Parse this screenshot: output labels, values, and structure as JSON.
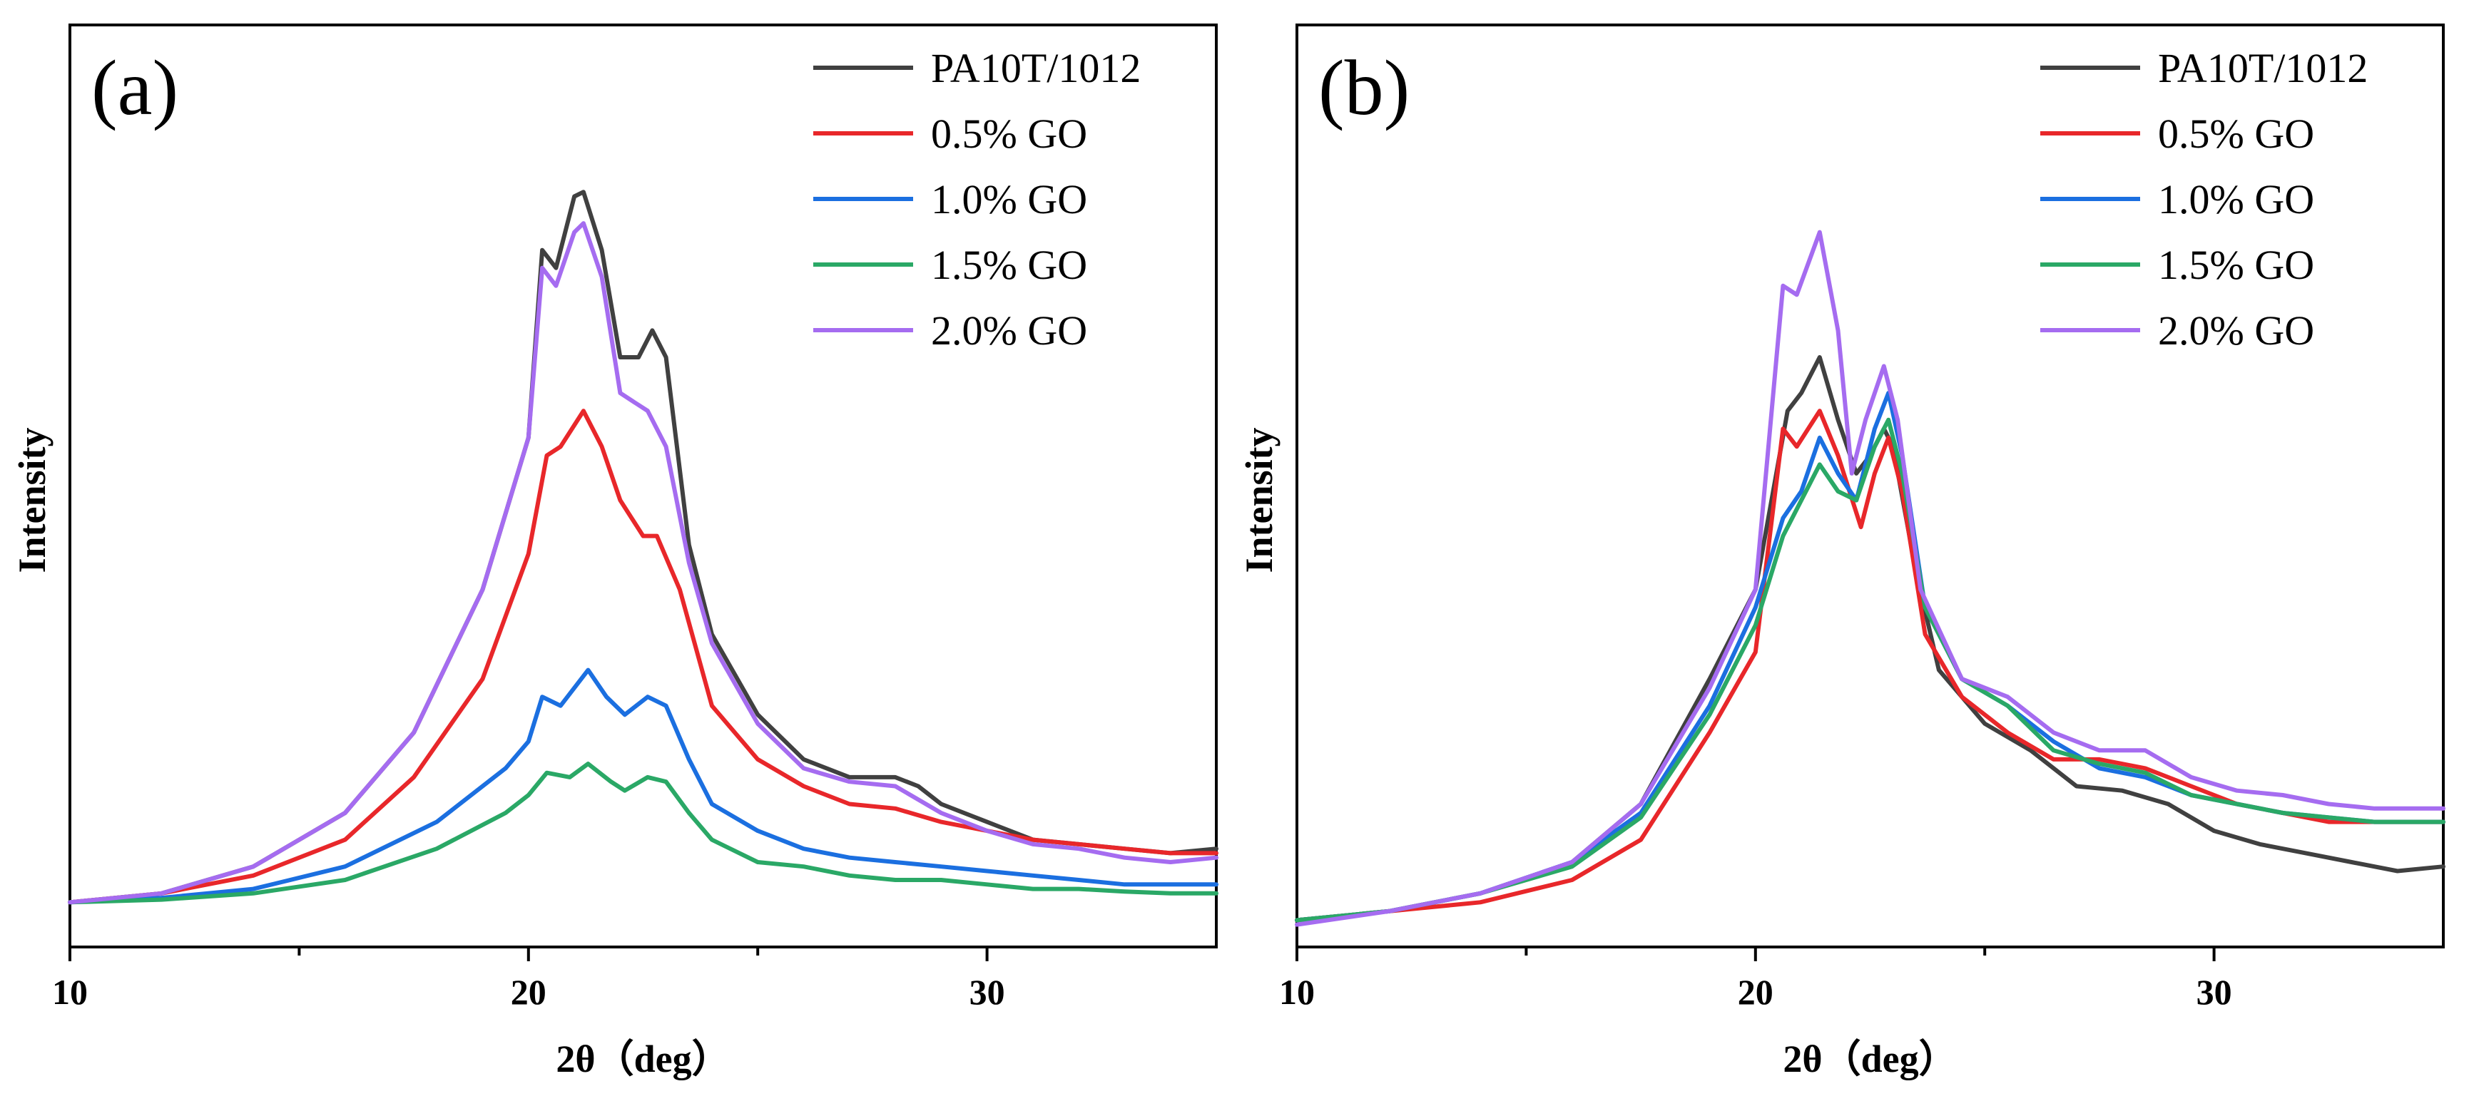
{
  "colors": {
    "PA10T/1012": "#404040",
    "0.5% GO": "#e8272a",
    "1.0% GO": "#1b6fe0",
    "1.5% GO": "#2aa866",
    "2.0% GO": "#a56cf0"
  },
  "chart_data": [
    {
      "type": "line",
      "panel_label": "(a)",
      "xlabel": "2θ（deg）",
      "ylabel": "Intensity",
      "xlim": [
        10,
        35
      ],
      "ylim": [
        0,
        100
      ],
      "xticks": [
        10,
        20,
        30
      ],
      "xtick_labels": [
        "10",
        "20",
        "30"
      ],
      "legend_position": "top-right",
      "series": [
        {
          "name": "PA10T/1012",
          "points": [
            [
              10,
              5
            ],
            [
              12,
              6
            ],
            [
              14,
              9
            ],
            [
              16,
              15
            ],
            [
              17.5,
              24
            ],
            [
              19,
              40
            ],
            [
              20,
              57
            ],
            [
              20.3,
              78
            ],
            [
              20.6,
              76
            ],
            [
              21,
              84
            ],
            [
              21.2,
              84.5
            ],
            [
              21.6,
              78
            ],
            [
              22,
              66
            ],
            [
              22.4,
              66
            ],
            [
              22.7,
              69
            ],
            [
              23,
              66
            ],
            [
              23.5,
              45
            ],
            [
              24,
              35
            ],
            [
              25,
              26
            ],
            [
              26,
              21
            ],
            [
              27,
              19
            ],
            [
              28,
              19
            ],
            [
              28.5,
              18
            ],
            [
              29,
              16
            ],
            [
              30,
              14
            ],
            [
              31,
              12
            ],
            [
              32,
              11.5
            ],
            [
              33,
              11
            ],
            [
              34,
              10.5
            ],
            [
              35,
              11
            ]
          ]
        },
        {
          "name": "0.5% GO",
          "points": [
            [
              10,
              5
            ],
            [
              12,
              6
            ],
            [
              14,
              8
            ],
            [
              16,
              12
            ],
            [
              17.5,
              19
            ],
            [
              19,
              30
            ],
            [
              20,
              44
            ],
            [
              20.4,
              55
            ],
            [
              20.7,
              56
            ],
            [
              21.2,
              60
            ],
            [
              21.6,
              56
            ],
            [
              22,
              50
            ],
            [
              22.5,
              46
            ],
            [
              22.8,
              46
            ],
            [
              23.3,
              40
            ],
            [
              24,
              27
            ],
            [
              25,
              21
            ],
            [
              26,
              18
            ],
            [
              27,
              16
            ],
            [
              28,
              15.5
            ],
            [
              29,
              14
            ],
            [
              30,
              13
            ],
            [
              31,
              12
            ],
            [
              32,
              11.5
            ],
            [
              33,
              11
            ],
            [
              34,
              10.5
            ],
            [
              35,
              10.5
            ]
          ]
        },
        {
          "name": "1.0% GO",
          "points": [
            [
              10,
              5
            ],
            [
              12,
              5.5
            ],
            [
              14,
              6.5
            ],
            [
              16,
              9
            ],
            [
              18,
              14
            ],
            [
              19.5,
              20
            ],
            [
              20,
              23
            ],
            [
              20.3,
              28
            ],
            [
              20.7,
              27
            ],
            [
              21.3,
              31
            ],
            [
              21.7,
              28
            ],
            [
              22.1,
              26
            ],
            [
              22.6,
              28
            ],
            [
              23,
              27
            ],
            [
              23.5,
              21
            ],
            [
              24,
              16
            ],
            [
              25,
              13
            ],
            [
              26,
              11
            ],
            [
              27,
              10
            ],
            [
              28,
              9.5
            ],
            [
              29,
              9
            ],
            [
              30,
              8.5
            ],
            [
              31,
              8
            ],
            [
              32,
              7.5
            ],
            [
              33,
              7
            ],
            [
              34,
              7
            ],
            [
              35,
              7
            ]
          ]
        },
        {
          "name": "1.5% GO",
          "points": [
            [
              10,
              5
            ],
            [
              12,
              5.3
            ],
            [
              14,
              6
            ],
            [
              16,
              7.5
            ],
            [
              18,
              11
            ],
            [
              19.5,
              15
            ],
            [
              20,
              17
            ],
            [
              20.4,
              19.5
            ],
            [
              20.9,
              19
            ],
            [
              21.3,
              20.5
            ],
            [
              21.8,
              18.5
            ],
            [
              22.1,
              17.5
            ],
            [
              22.6,
              19
            ],
            [
              23,
              18.5
            ],
            [
              23.5,
              15
            ],
            [
              24,
              12
            ],
            [
              25,
              9.5
            ],
            [
              26,
              9
            ],
            [
              27,
              8
            ],
            [
              28,
              7.5
            ],
            [
              29,
              7.5
            ],
            [
              30,
              7
            ],
            [
              31,
              6.5
            ],
            [
              32,
              6.5
            ],
            [
              33,
              6.2
            ],
            [
              34,
              6
            ],
            [
              35,
              6
            ]
          ]
        },
        {
          "name": "2.0% GO",
          "points": [
            [
              10,
              5
            ],
            [
              12,
              6
            ],
            [
              14,
              9
            ],
            [
              16,
              15
            ],
            [
              17.5,
              24
            ],
            [
              19,
              40
            ],
            [
              20,
              57
            ],
            [
              20.3,
              76
            ],
            [
              20.6,
              74
            ],
            [
              21,
              80
            ],
            [
              21.2,
              81
            ],
            [
              21.6,
              75
            ],
            [
              22,
              62
            ],
            [
              22.3,
              61
            ],
            [
              22.6,
              60
            ],
            [
              23,
              56
            ],
            [
              23.5,
              43
            ],
            [
              24,
              34
            ],
            [
              25,
              25
            ],
            [
              26,
              20
            ],
            [
              27,
              18.5
            ],
            [
              28,
              18
            ],
            [
              29,
              15
            ],
            [
              30,
              13
            ],
            [
              31,
              11.5
            ],
            [
              32,
              11
            ],
            [
              33,
              10
            ],
            [
              34,
              9.5
            ],
            [
              35,
              10
            ]
          ]
        }
      ]
    },
    {
      "type": "line",
      "panel_label": "(b)",
      "xlabel": "2θ（deg）",
      "ylabel": "Intensity",
      "xlim": [
        10,
        35
      ],
      "ylim": [
        0,
        100
      ],
      "xticks": [
        10,
        20,
        30
      ],
      "xtick_labels": [
        "10",
        "20",
        "30"
      ],
      "legend_position": "top-right",
      "series": [
        {
          "name": "PA10T/1012",
          "points": [
            [
              10,
              3
            ],
            [
              12,
              4
            ],
            [
              14,
              6
            ],
            [
              16,
              9.5
            ],
            [
              17.5,
              16
            ],
            [
              19,
              30
            ],
            [
              20,
              40
            ],
            [
              20.7,
              60
            ],
            [
              21,
              62
            ],
            [
              21.4,
              66
            ],
            [
              21.8,
              59
            ],
            [
              22.2,
              53
            ],
            [
              22.5,
              55
            ],
            [
              22.8,
              58
            ],
            [
              23,
              56
            ],
            [
              23.5,
              42
            ],
            [
              24,
              31
            ],
            [
              25,
              25
            ],
            [
              26,
              22
            ],
            [
              27,
              18
            ],
            [
              28,
              17.5
            ],
            [
              29,
              16
            ],
            [
              30,
              13
            ],
            [
              31,
              11.5
            ],
            [
              32,
              10.5
            ],
            [
              33,
              9.5
            ],
            [
              34,
              8.5
            ],
            [
              35,
              9
            ]
          ]
        },
        {
          "name": "0.5% GO",
          "points": [
            [
              10,
              3
            ],
            [
              12,
              4
            ],
            [
              14,
              5
            ],
            [
              16,
              7.5
            ],
            [
              17.5,
              12
            ],
            [
              19,
              24
            ],
            [
              20,
              33
            ],
            [
              20.6,
              58
            ],
            [
              20.9,
              56
            ],
            [
              21.4,
              60
            ],
            [
              21.8,
              55
            ],
            [
              22.3,
              47
            ],
            [
              22.6,
              53
            ],
            [
              22.9,
              57
            ],
            [
              23.2,
              51
            ],
            [
              23.7,
              35
            ],
            [
              24.5,
              28
            ],
            [
              25.5,
              24
            ],
            [
              26.5,
              21
            ],
            [
              27.5,
              21
            ],
            [
              28.5,
              20
            ],
            [
              29.5,
              18
            ],
            [
              30.5,
              16
            ],
            [
              31.5,
              15
            ],
            [
              32.5,
              14
            ],
            [
              33.5,
              14
            ],
            [
              35,
              14
            ]
          ]
        },
        {
          "name": "1.0% GO",
          "points": [
            [
              10,
              3
            ],
            [
              12,
              4
            ],
            [
              14,
              6
            ],
            [
              16,
              9.5
            ],
            [
              17.5,
              15
            ],
            [
              19,
              27
            ],
            [
              20,
              38
            ],
            [
              20.6,
              48
            ],
            [
              21,
              51
            ],
            [
              21.4,
              57
            ],
            [
              21.8,
              53
            ],
            [
              22.2,
              50
            ],
            [
              22.6,
              58
            ],
            [
              22.9,
              62
            ],
            [
              23.2,
              55
            ],
            [
              23.7,
              38
            ],
            [
              24.5,
              30
            ],
            [
              25.5,
              27
            ],
            [
              26.5,
              23
            ],
            [
              27.5,
              20
            ],
            [
              28.5,
              19
            ],
            [
              29.5,
              17
            ],
            [
              30.5,
              16
            ],
            [
              31.5,
              15
            ],
            [
              32.5,
              14.5
            ],
            [
              33.5,
              14
            ],
            [
              35,
              14
            ]
          ]
        },
        {
          "name": "1.5% GO",
          "points": [
            [
              10,
              3
            ],
            [
              12,
              4
            ],
            [
              14,
              6
            ],
            [
              16,
              9
            ],
            [
              17.5,
              14.5
            ],
            [
              19,
              26
            ],
            [
              20,
              36
            ],
            [
              20.6,
              46
            ],
            [
              21,
              50
            ],
            [
              21.4,
              54
            ],
            [
              21.8,
              51
            ],
            [
              22.2,
              50
            ],
            [
              22.6,
              56
            ],
            [
              22.9,
              59
            ],
            [
              23.2,
              53
            ],
            [
              23.7,
              38
            ],
            [
              24.5,
              30
            ],
            [
              25.5,
              27
            ],
            [
              26.5,
              22
            ],
            [
              27.5,
              20.5
            ],
            [
              28.5,
              19.5
            ],
            [
              29.5,
              17
            ],
            [
              30.5,
              16
            ],
            [
              31.5,
              15
            ],
            [
              32.5,
              14.5
            ],
            [
              33.5,
              14
            ],
            [
              35,
              14
            ]
          ]
        },
        {
          "name": "2.0% GO",
          "points": [
            [
              10,
              2.5
            ],
            [
              12,
              4
            ],
            [
              14,
              6
            ],
            [
              16,
              9.5
            ],
            [
              17.5,
              16
            ],
            [
              19,
              29
            ],
            [
              20,
              40
            ],
            [
              20.6,
              74
            ],
            [
              20.9,
              73
            ],
            [
              21.4,
              80
            ],
            [
              21.8,
              69
            ],
            [
              22.1,
              53
            ],
            [
              22.4,
              59
            ],
            [
              22.8,
              65
            ],
            [
              23.1,
              59
            ],
            [
              23.6,
              40
            ],
            [
              24.5,
              30
            ],
            [
              25.5,
              28
            ],
            [
              26.5,
              24
            ],
            [
              27.5,
              22
            ],
            [
              28.5,
              22
            ],
            [
              29.5,
              19
            ],
            [
              30.5,
              17.5
            ],
            [
              31.5,
              17
            ],
            [
              32.5,
              16
            ],
            [
              33.5,
              15.5
            ],
            [
              35,
              15.5
            ]
          ]
        }
      ]
    }
  ]
}
